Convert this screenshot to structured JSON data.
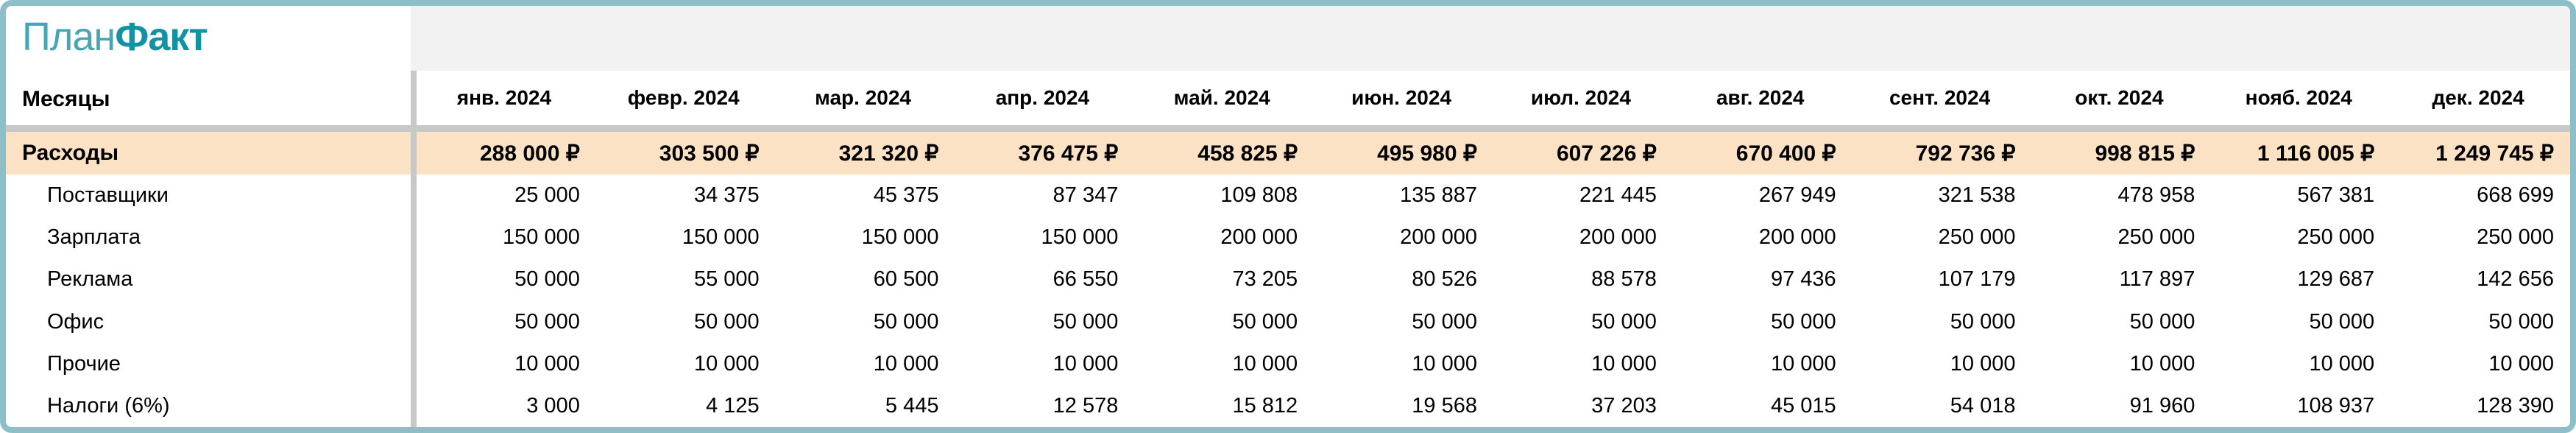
{
  "brand": {
    "logo_plan": "План",
    "logo_fact": "Факт"
  },
  "table": {
    "axis_label": "Месяцы",
    "months": [
      "янв. 2024",
      "февр. 2024",
      "мар. 2024",
      "апр. 2024",
      "май. 2024",
      "июн. 2024",
      "июл. 2024",
      "авг. 2024",
      "сент. 2024",
      "окт. 2024",
      "нояб. 2024",
      "дек. 2024"
    ],
    "total_row": {
      "label": "Расходы",
      "values": [
        "288 000 ₽",
        "303 500 ₽",
        "321 320 ₽",
        "376 475 ₽",
        "458 825 ₽",
        "495 980 ₽",
        "607 226 ₽",
        "670 400 ₽",
        "792 736 ₽",
        "998 815 ₽",
        "1 116 005 ₽",
        "1 249 745 ₽"
      ]
    },
    "rows": [
      {
        "label": "Поставщики",
        "values": [
          "25 000",
          "34 375",
          "45 375",
          "87 347",
          "109 808",
          "135 887",
          "221 445",
          "267 949",
          "321 538",
          "478 958",
          "567 381",
          "668 699"
        ]
      },
      {
        "label": "Зарплата",
        "values": [
          "150 000",
          "150 000",
          "150 000",
          "150 000",
          "200 000",
          "200 000",
          "200 000",
          "200 000",
          "250 000",
          "250 000",
          "250 000",
          "250 000"
        ]
      },
      {
        "label": "Реклама",
        "values": [
          "50 000",
          "55 000",
          "60 500",
          "66 550",
          "73 205",
          "80 526",
          "88 578",
          "97 436",
          "107 179",
          "117 897",
          "129 687",
          "142 656"
        ]
      },
      {
        "label": "Офис",
        "values": [
          "50 000",
          "50 000",
          "50 000",
          "50 000",
          "50 000",
          "50 000",
          "50 000",
          "50 000",
          "50 000",
          "50 000",
          "50 000",
          "50 000"
        ]
      },
      {
        "label": "Прочие",
        "values": [
          "10 000",
          "10 000",
          "10 000",
          "10 000",
          "10 000",
          "10 000",
          "10 000",
          "10 000",
          "10 000",
          "10 000",
          "10 000",
          "10 000"
        ]
      },
      {
        "label": "Налоги (6%)",
        "values": [
          "3 000",
          "4 125",
          "5 445",
          "12 578",
          "15 812",
          "19 568",
          "37 203",
          "45 015",
          "54 018",
          "91 960",
          "108 937",
          "128 390"
        ]
      }
    ]
  },
  "colors": {
    "frame_teal": "#8dbfc9",
    "divider_gray": "#c8c8c8",
    "header_strip": "#f2f2f2",
    "total_bg": "#fbe2c4",
    "logo_plan": "#45a7b5",
    "logo_fact": "#1292a5"
  }
}
